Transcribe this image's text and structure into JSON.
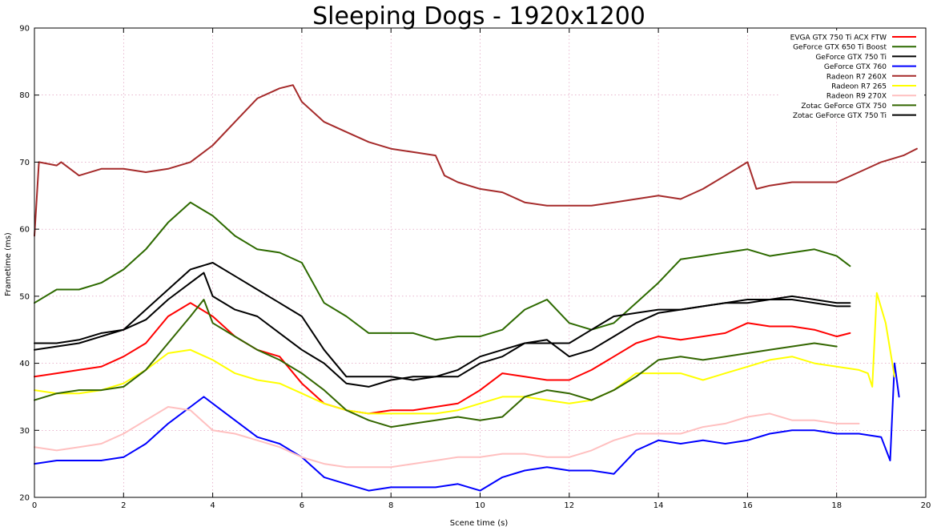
{
  "chart_data": {
    "type": "line",
    "title": "Sleeping Dogs - 1920x1200",
    "xlabel": "Scene time (s)",
    "ylabel": "Frametime (ms)",
    "xlim": [
      0,
      20
    ],
    "ylim": [
      20,
      90
    ],
    "xticks": [
      0,
      2,
      4,
      6,
      8,
      10,
      12,
      14,
      16,
      18,
      20
    ],
    "yticks": [
      20,
      30,
      40,
      50,
      60,
      70,
      80,
      90
    ],
    "grid": true,
    "legend_position": "top-right",
    "series": [
      {
        "name": "EVGA GTX 750 Ti ACX FTW",
        "color": "#ff0000",
        "x": [
          0,
          0.5,
          1,
          1.5,
          2,
          2.5,
          3,
          3.5,
          4,
          4.5,
          5,
          5.5,
          6,
          6.5,
          7,
          7.5,
          8,
          8.5,
          9,
          9.5,
          10,
          10.5,
          11,
          11.5,
          12,
          12.5,
          13,
          13.5,
          14,
          14.5,
          15,
          15.5,
          16,
          16.5,
          17,
          17.5,
          18,
          18.3
        ],
        "y": [
          38,
          38.5,
          39,
          39.5,
          41,
          43,
          47,
          49,
          47,
          44,
          42,
          41,
          37,
          34,
          33,
          32.5,
          33,
          33,
          33.5,
          34,
          36,
          38.5,
          38,
          37.5,
          37.5,
          39,
          41,
          43,
          44,
          43.5,
          44,
          44.5,
          46,
          45.5,
          45.5,
          45,
          44,
          44.5
        ]
      },
      {
        "name": "GeForce GTX 650 Ti Boost",
        "color": "#2d6a00",
        "x": [
          0,
          0.5,
          1,
          1.5,
          2,
          2.5,
          3,
          3.5,
          4,
          4.5,
          5,
          5.5,
          6,
          6.5,
          7,
          7.5,
          8,
          8.5,
          9,
          9.5,
          10,
          10.5,
          11,
          11.5,
          12,
          12.5,
          13,
          13.5,
          14,
          14.5,
          15,
          15.5,
          16,
          16.5,
          17,
          17.5,
          18,
          18.3
        ],
        "y": [
          49,
          51,
          51,
          52,
          54,
          57,
          61,
          64,
          62,
          59,
          57,
          56.5,
          55,
          49,
          47,
          44.5,
          44.5,
          44.5,
          43.5,
          44,
          44,
          45,
          48,
          49.5,
          46,
          45,
          46,
          49,
          52,
          55.5,
          56,
          56.5,
          57,
          56,
          56.5,
          57,
          56,
          54.5
        ]
      },
      {
        "name": "GeForce GTX 750 Ti",
        "color": "#000000",
        "x": [
          0,
          0.5,
          1,
          1.5,
          2,
          2.5,
          3,
          3.5,
          4,
          4.5,
          5,
          5.5,
          6,
          6.5,
          7,
          7.5,
          8,
          8.5,
          9,
          9.5,
          10,
          10.5,
          11,
          11.5,
          12,
          12.5,
          13,
          13.5,
          14,
          14.5,
          15,
          15.5,
          16,
          16.5,
          17,
          17.5,
          18,
          18.3
        ],
        "y": [
          43,
          43,
          43.5,
          44.5,
          45,
          48,
          51,
          54,
          55,
          53,
          51,
          49,
          47,
          42,
          38,
          38,
          38,
          37.5,
          38,
          39,
          41,
          42,
          43,
          43,
          43,
          45,
          47,
          47.5,
          48,
          48,
          48.5,
          49,
          49,
          49.5,
          50,
          49.5,
          49,
          49
        ]
      },
      {
        "name": "GeForce GTX 760",
        "color": "#0000ff",
        "x": [
          0,
          0.5,
          1,
          1.5,
          2,
          2.5,
          3,
          3.5,
          3.8,
          4.2,
          4.6,
          5,
          5.5,
          6,
          6.5,
          7,
          7.5,
          8,
          8.5,
          9,
          9.5,
          10,
          10.5,
          11,
          11.5,
          12,
          12.5,
          13,
          13.5,
          14,
          14.5,
          15,
          15.5,
          16,
          16.5,
          17,
          17.5,
          18,
          18.5,
          19,
          19.2,
          19.3,
          19.4
        ],
        "y": [
          25,
          25.5,
          25.5,
          25.5,
          26,
          28,
          31,
          33.5,
          35,
          33,
          31,
          29,
          28,
          26,
          23,
          22,
          21,
          21.5,
          21.5,
          21.5,
          22,
          21,
          23,
          24,
          24.5,
          24,
          24,
          23.5,
          27,
          28.5,
          28,
          28.5,
          28,
          28.5,
          29.5,
          30,
          30,
          29.5,
          29.5,
          29,
          25.5,
          40,
          35
        ]
      },
      {
        "name": "Radeon R7 260X",
        "color": "#a52a2a",
        "x": [
          0,
          0.1,
          0.5,
          0.6,
          1,
          1.5,
          2,
          2.5,
          3,
          3.5,
          4,
          4.5,
          5,
          5.5,
          5.8,
          6,
          6.5,
          7,
          7.5,
          8,
          8.5,
          9,
          9.2,
          9.5,
          10,
          10.5,
          11,
          11.5,
          12,
          12.5,
          13,
          13.5,
          14,
          14.5,
          15,
          15.5,
          16,
          16.2,
          16.5,
          17,
          17.5,
          18,
          18.5,
          19,
          19.5,
          19.8
        ],
        "y": [
          59,
          70,
          69.5,
          70,
          68,
          69,
          69,
          68.5,
          69,
          70,
          72.5,
          76,
          79.5,
          81,
          81.5,
          79,
          76,
          74.5,
          73,
          72,
          71.5,
          71,
          68,
          67,
          66,
          65.5,
          64,
          63.5,
          63.5,
          63.5,
          64,
          64.5,
          65,
          64.5,
          66,
          68,
          70,
          66,
          66.5,
          67,
          67,
          67,
          68.5,
          70,
          71,
          72
        ]
      },
      {
        "name": "Radeon R7 265",
        "color": "#ffff00",
        "x": [
          0,
          0.5,
          1,
          1.5,
          2,
          2.5,
          3,
          3.5,
          4,
          4.5,
          5,
          5.5,
          6,
          6.5,
          7,
          7.5,
          8,
          8.5,
          9,
          9.5,
          10,
          10.5,
          11,
          11.5,
          12,
          12.5,
          13,
          13.5,
          14,
          14.5,
          15,
          15.5,
          16,
          16.5,
          17,
          17.5,
          18,
          18.5,
          18.7,
          18.8,
          18.9,
          19.1,
          19.3
        ],
        "y": [
          36,
          35.5,
          35.5,
          36,
          37,
          39,
          41.5,
          42,
          40.5,
          38.5,
          37.5,
          37,
          35.5,
          34,
          33,
          32.5,
          32.5,
          32.5,
          32.5,
          33,
          34,
          35,
          35,
          34.5,
          34,
          34.5,
          36,
          38.5,
          38.5,
          38.5,
          37.5,
          38.5,
          39.5,
          40.5,
          41,
          40,
          39.5,
          39,
          38.5,
          36.5,
          50.5,
          46,
          38
        ]
      },
      {
        "name": "Radeon R9 270X",
        "color": "#ffc0c0",
        "x": [
          0,
          0.5,
          1,
          1.5,
          2,
          2.5,
          3,
          3.5,
          4,
          4.5,
          5,
          5.5,
          6,
          6.5,
          7,
          7.5,
          8,
          8.5,
          9,
          9.5,
          10,
          10.5,
          11,
          11.5,
          12,
          12.5,
          13,
          13.5,
          14,
          14.5,
          15,
          15.5,
          16,
          16.5,
          17,
          17.5,
          18,
          18.5
        ],
        "y": [
          27.5,
          27,
          27.5,
          28,
          29.5,
          31.5,
          33.5,
          33,
          30,
          29.5,
          28.5,
          27.5,
          26,
          25,
          24.5,
          24.5,
          24.5,
          25,
          25.5,
          26,
          26,
          26.5,
          26.5,
          26,
          26,
          27,
          28.5,
          29.5,
          29.5,
          29.5,
          30.5,
          31,
          32,
          32.5,
          31.5,
          31.5,
          31,
          31
        ]
      },
      {
        "name": "Zotac GeForce GTX 750",
        "color": "#336600",
        "x": [
          0,
          0.5,
          1,
          1.5,
          2,
          2.5,
          3,
          3.5,
          3.8,
          4,
          4.5,
          5,
          5.5,
          6,
          6.5,
          7,
          7.5,
          8,
          8.5,
          9,
          9.5,
          10,
          10.5,
          11,
          11.5,
          12,
          12.5,
          13,
          13.5,
          14,
          14.5,
          15,
          15.5,
          16,
          16.5,
          17,
          17.5,
          18
        ],
        "y": [
          34.5,
          35.5,
          36,
          36,
          36.5,
          39,
          43,
          47,
          49.5,
          46,
          44,
          42,
          40.5,
          38.5,
          36,
          33,
          31.5,
          30.5,
          31,
          31.5,
          32,
          31.5,
          32,
          35,
          36,
          35.5,
          34.5,
          36,
          38,
          40.5,
          41,
          40.5,
          41,
          41.5,
          42,
          42.5,
          43,
          42.5
        ]
      },
      {
        "name": "Zotac GeForce GTX 750 Ti",
        "color": "#000000",
        "x": [
          0,
          0.5,
          1,
          1.5,
          2,
          2.5,
          3,
          3.5,
          3.8,
          4,
          4.5,
          5,
          5.5,
          6,
          6.5,
          7,
          7.5,
          8,
          8.5,
          9,
          9.5,
          10,
          10.5,
          11,
          11.5,
          12,
          12.5,
          13,
          13.5,
          14,
          14.5,
          15,
          15.5,
          16,
          16.5,
          17,
          17.5,
          18,
          18.3
        ],
        "y": [
          42,
          42.5,
          43,
          44,
          45,
          46.5,
          49.5,
          52,
          53.5,
          50,
          48,
          47,
          44.5,
          42,
          40,
          37,
          36.5,
          37.5,
          38,
          38,
          38,
          40,
          41,
          43,
          43.5,
          41,
          42,
          44,
          46,
          47.5,
          48,
          48.5,
          49,
          49.5,
          49.5,
          49.5,
          49,
          48.5,
          48.5
        ]
      }
    ]
  }
}
